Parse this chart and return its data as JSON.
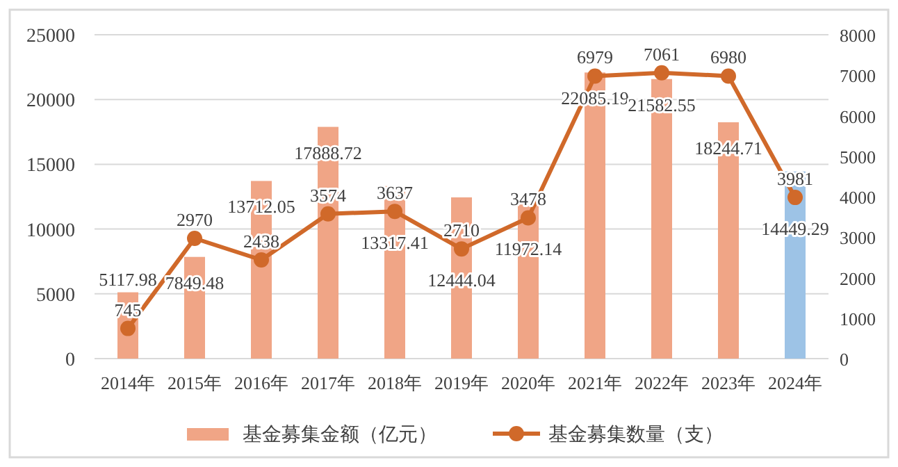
{
  "chart_data": {
    "type": "bar",
    "categories": [
      "2014年",
      "2015年",
      "2016年",
      "2017年",
      "2018年",
      "2019年",
      "2020年",
      "2021年",
      "2022年",
      "2023年",
      "2024年"
    ],
    "series": [
      {
        "name": "基金募集金额（亿元）",
        "color": "#f0a586",
        "colors": [
          "#f0a586",
          "#f0a586",
          "#f0a586",
          "#f0a586",
          "#f0a586",
          "#f0a586",
          "#f0a586",
          "#f0a586",
          "#f0a586",
          "#f0a586",
          "#9dc3e6"
        ],
        "values": [
          5117.98,
          7849.48,
          13712.05,
          17888.72,
          13317.41,
          12444.04,
          11972.14,
          22085.19,
          21582.55,
          18244.71,
          14449.29
        ]
      },
      {
        "name": "基金募集数量（支）",
        "type": "line",
        "axis": "y2",
        "color": "#d0692a",
        "marker": "circle",
        "values": [
          745,
          2970,
          2438,
          3574,
          3637,
          2710,
          3478,
          6979,
          7061,
          6980,
          3981
        ]
      }
    ],
    "ylim": [
      0,
      25000
    ],
    "yticks": [
      0,
      5000,
      10000,
      15000,
      20000,
      25000
    ],
    "y2lim": [
      0,
      8000
    ],
    "y2ticks": [
      0,
      1000,
      2000,
      3000,
      4000,
      5000,
      6000,
      7000,
      8000
    ],
    "grid": "y",
    "legend": "bottom",
    "data_labels": true
  }
}
